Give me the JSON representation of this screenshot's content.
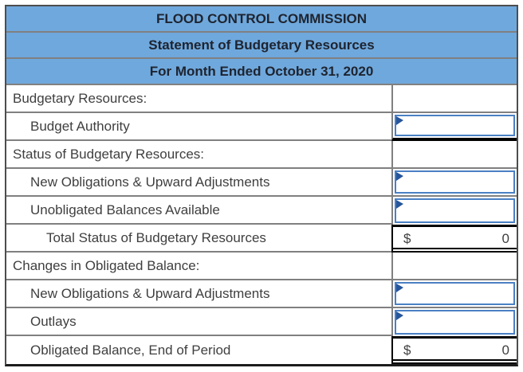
{
  "title": {
    "line1": "FLOOD CONTROL COMMISSION",
    "line2": "Statement of Budgetary Resources",
    "line3": "For Month Ended October 31, 2020"
  },
  "rows": [
    {
      "kind": "section",
      "label": "Budgetary Resources:",
      "indent": 0
    },
    {
      "kind": "input",
      "label": "Budget Authority",
      "indent": 1,
      "input_value": "",
      "underline": true
    },
    {
      "kind": "section",
      "label": "Status of Budgetary Resources:",
      "indent": 0
    },
    {
      "kind": "input",
      "label": "New Obligations & Upward Adjustments",
      "indent": 1,
      "input_value": ""
    },
    {
      "kind": "input",
      "label": "Unobligated Balances Available",
      "indent": 1,
      "input_value": "",
      "before_total": true
    },
    {
      "kind": "total",
      "label": "Total Status of Budgetary Resources",
      "indent": 2,
      "currency": "$",
      "value": "0"
    },
    {
      "kind": "section",
      "label": "Changes in Obligated Balance:",
      "indent": 0
    },
    {
      "kind": "input",
      "label": "New Obligations & Upward Adjustments",
      "indent": 1,
      "input_value": ""
    },
    {
      "kind": "input",
      "label": "Outlays",
      "indent": 1,
      "input_value": "",
      "before_total": true
    },
    {
      "kind": "total",
      "label": "Obligated Balance, End of Period",
      "indent": 1,
      "currency": "$",
      "value": "0",
      "last": true
    }
  ],
  "colors": {
    "header_bg": "#6FA8DC",
    "header_text": "#1E2430",
    "body_text": "#3F3F3F",
    "grid_line": "#808080",
    "outer_border": "#4D4D4D",
    "total_line": "#000000",
    "input_border": "#4A80C4",
    "input_marker": "#26559B"
  }
}
